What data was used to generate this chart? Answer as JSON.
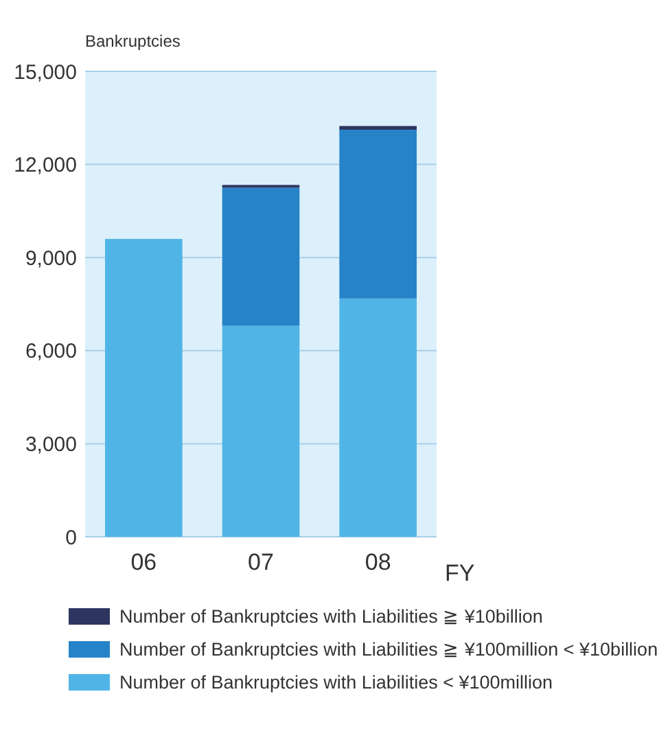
{
  "chart_data": {
    "type": "bar",
    "stacked": true,
    "ylabel": "Bankruptcies",
    "xlabel": "FY",
    "categories": [
      "06",
      "07",
      "08"
    ],
    "series": [
      {
        "name": "Number of Bankruptcies with Liabilities < ¥100million",
        "color": "#50b5e6",
        "values": [
          9600,
          6800,
          7680
        ]
      },
      {
        "name": "Number of Bankruptcies with Liabilities ≧ ¥100million < ¥10billion",
        "color": "#2783c8",
        "values": [
          null,
          4450,
          5440
        ]
      },
      {
        "name": "Number of Bankruptcies with Liabilities ≧ ¥10billion",
        "color": "#2e3560",
        "values": [
          null,
          90,
          120
        ]
      }
    ],
    "ylim": [
      0,
      15000
    ],
    "yticks": [
      {
        "value": 0,
        "label": "0"
      },
      {
        "value": 3000,
        "label": "3,000"
      },
      {
        "value": 6000,
        "label": "6,000"
      },
      {
        "value": 9000,
        "label": "9,000"
      },
      {
        "value": 12000,
        "label": "12,000"
      },
      {
        "value": 15000,
        "label": "15,000"
      }
    ],
    "grid": "y",
    "legend": "bottom"
  }
}
